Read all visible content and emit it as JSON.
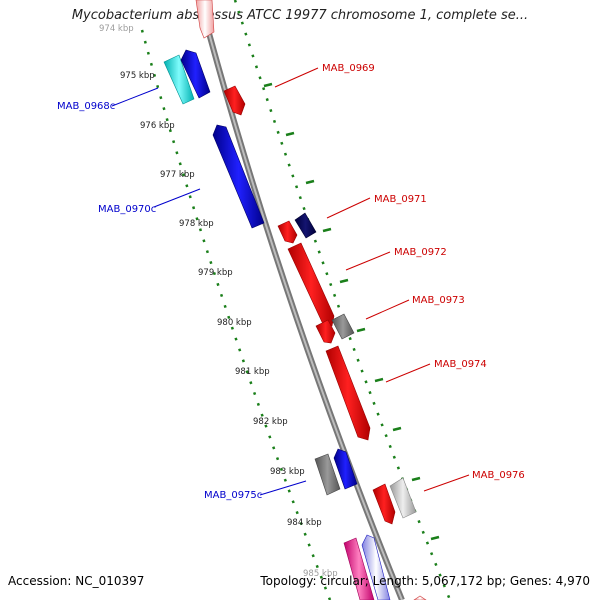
{
  "title": "Mycobacterium abscessus ATCC 19977 chromosome 1, complete se...",
  "footer": {
    "accession": "Accession: NC_010397",
    "topology": "Topology: circular; Length: 5,067,172 bp; Genes: 4,970"
  },
  "colors": {
    "backbone": "#8c8c8c",
    "tick": "#1a7f1a",
    "forward_label": "#cc0000",
    "reverse_label": "#0000cc"
  },
  "scale_ticks": [
    "974 kbp",
    "975 kbp",
    "976 kbp",
    "977 kbp",
    "978 kbp",
    "979 kbp",
    "980 kbp",
    "981 kbp",
    "982 kbp",
    "983 kbp",
    "984 kbp",
    "985 kbp"
  ],
  "gene_labels": {
    "MAB_0969": "MAB_0969",
    "MAB_0968c": "MAB_0968c",
    "MAB_0970c": "MAB_0970c",
    "MAB_0971": "MAB_0971",
    "MAB_0972": "MAB_0972",
    "MAB_0973": "MAB_0973",
    "MAB_0974": "MAB_0974",
    "MAB_0975c": "MAB_0975c",
    "MAB_0976": "MAB_0976"
  }
}
